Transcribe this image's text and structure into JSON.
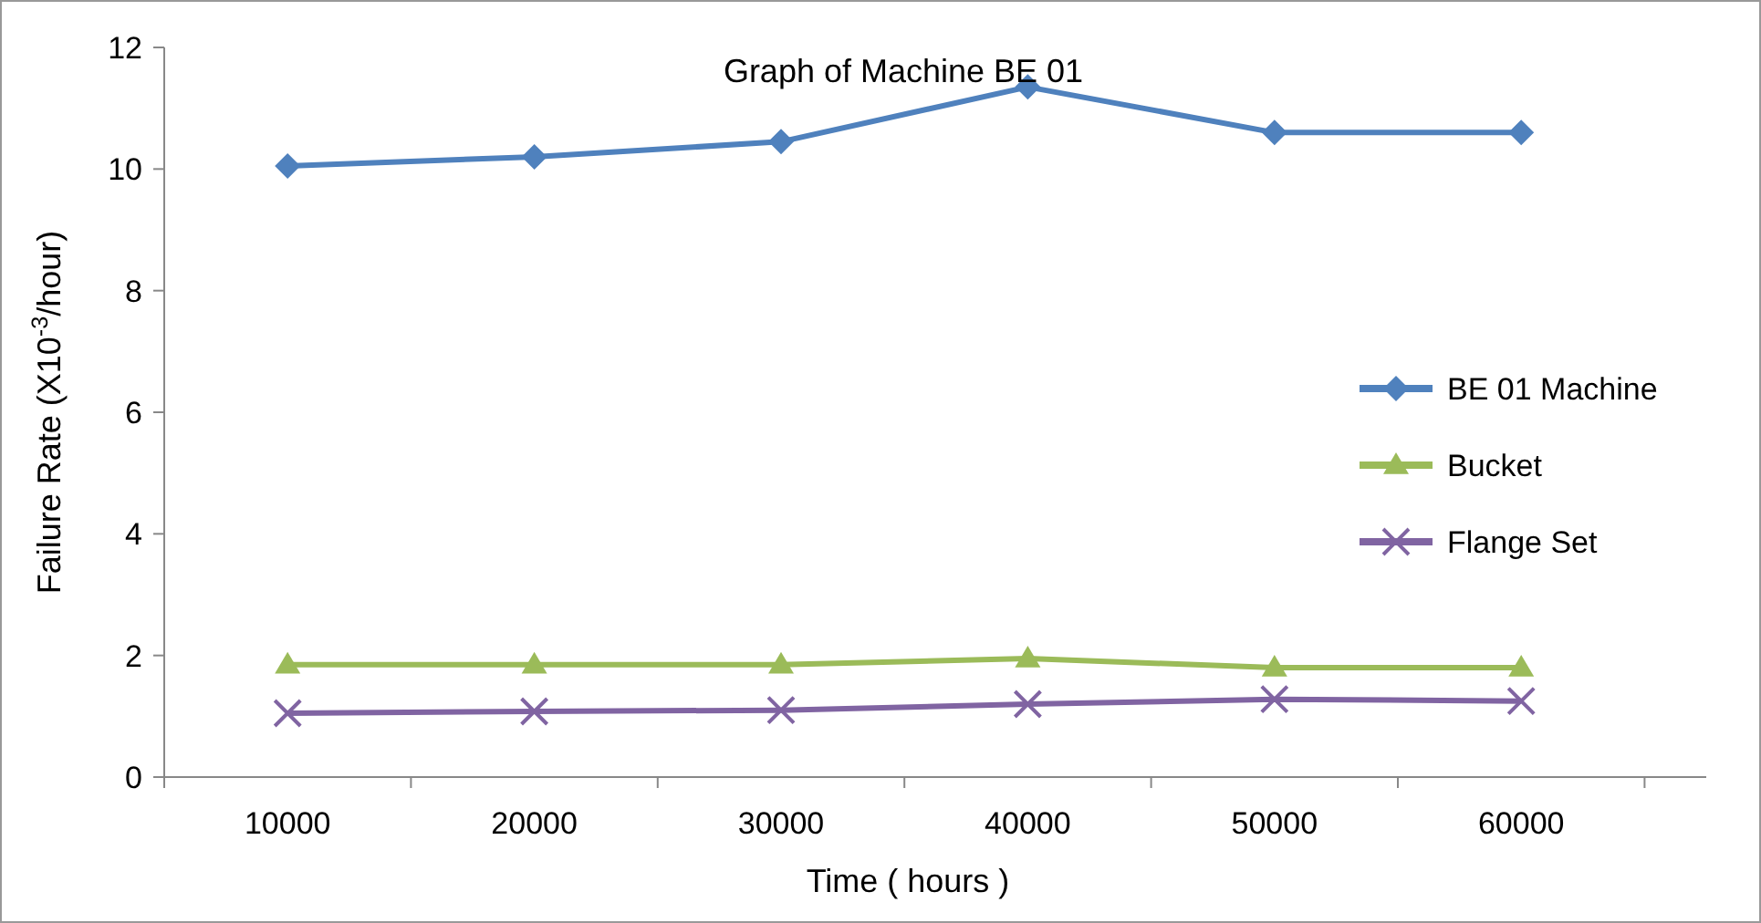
{
  "chart_data": {
    "type": "line",
    "title": "Graph of Machine BE 01",
    "xlabel": "Time ( hours )",
    "ylabel": "Failure Rate (X10$^{-3}$/hour)",
    "categories": [
      "10000",
      "20000",
      "30000",
      "40000",
      "50000",
      "60000"
    ],
    "series": [
      {
        "name": "BE 01 Machine",
        "color": "#4f81bd",
        "marker": "diamond",
        "values": [
          10.05,
          10.2,
          10.45,
          11.35,
          10.6,
          10.6
        ]
      },
      {
        "name": "Bucket",
        "color": "#9bbb59",
        "marker": "triangle",
        "values": [
          1.85,
          1.85,
          1.85,
          1.95,
          1.8,
          1.8
        ]
      },
      {
        "name": "Flange Set",
        "color": "#8064a2",
        "marker": "cross",
        "values": [
          1.05,
          1.08,
          1.1,
          1.2,
          1.28,
          1.25
        ]
      }
    ],
    "ylim": [
      0,
      12
    ],
    "yticks": [
      0,
      2,
      4,
      6,
      8,
      10,
      12
    ],
    "grid": false,
    "legend": "right",
    "line_style": "solid"
  }
}
